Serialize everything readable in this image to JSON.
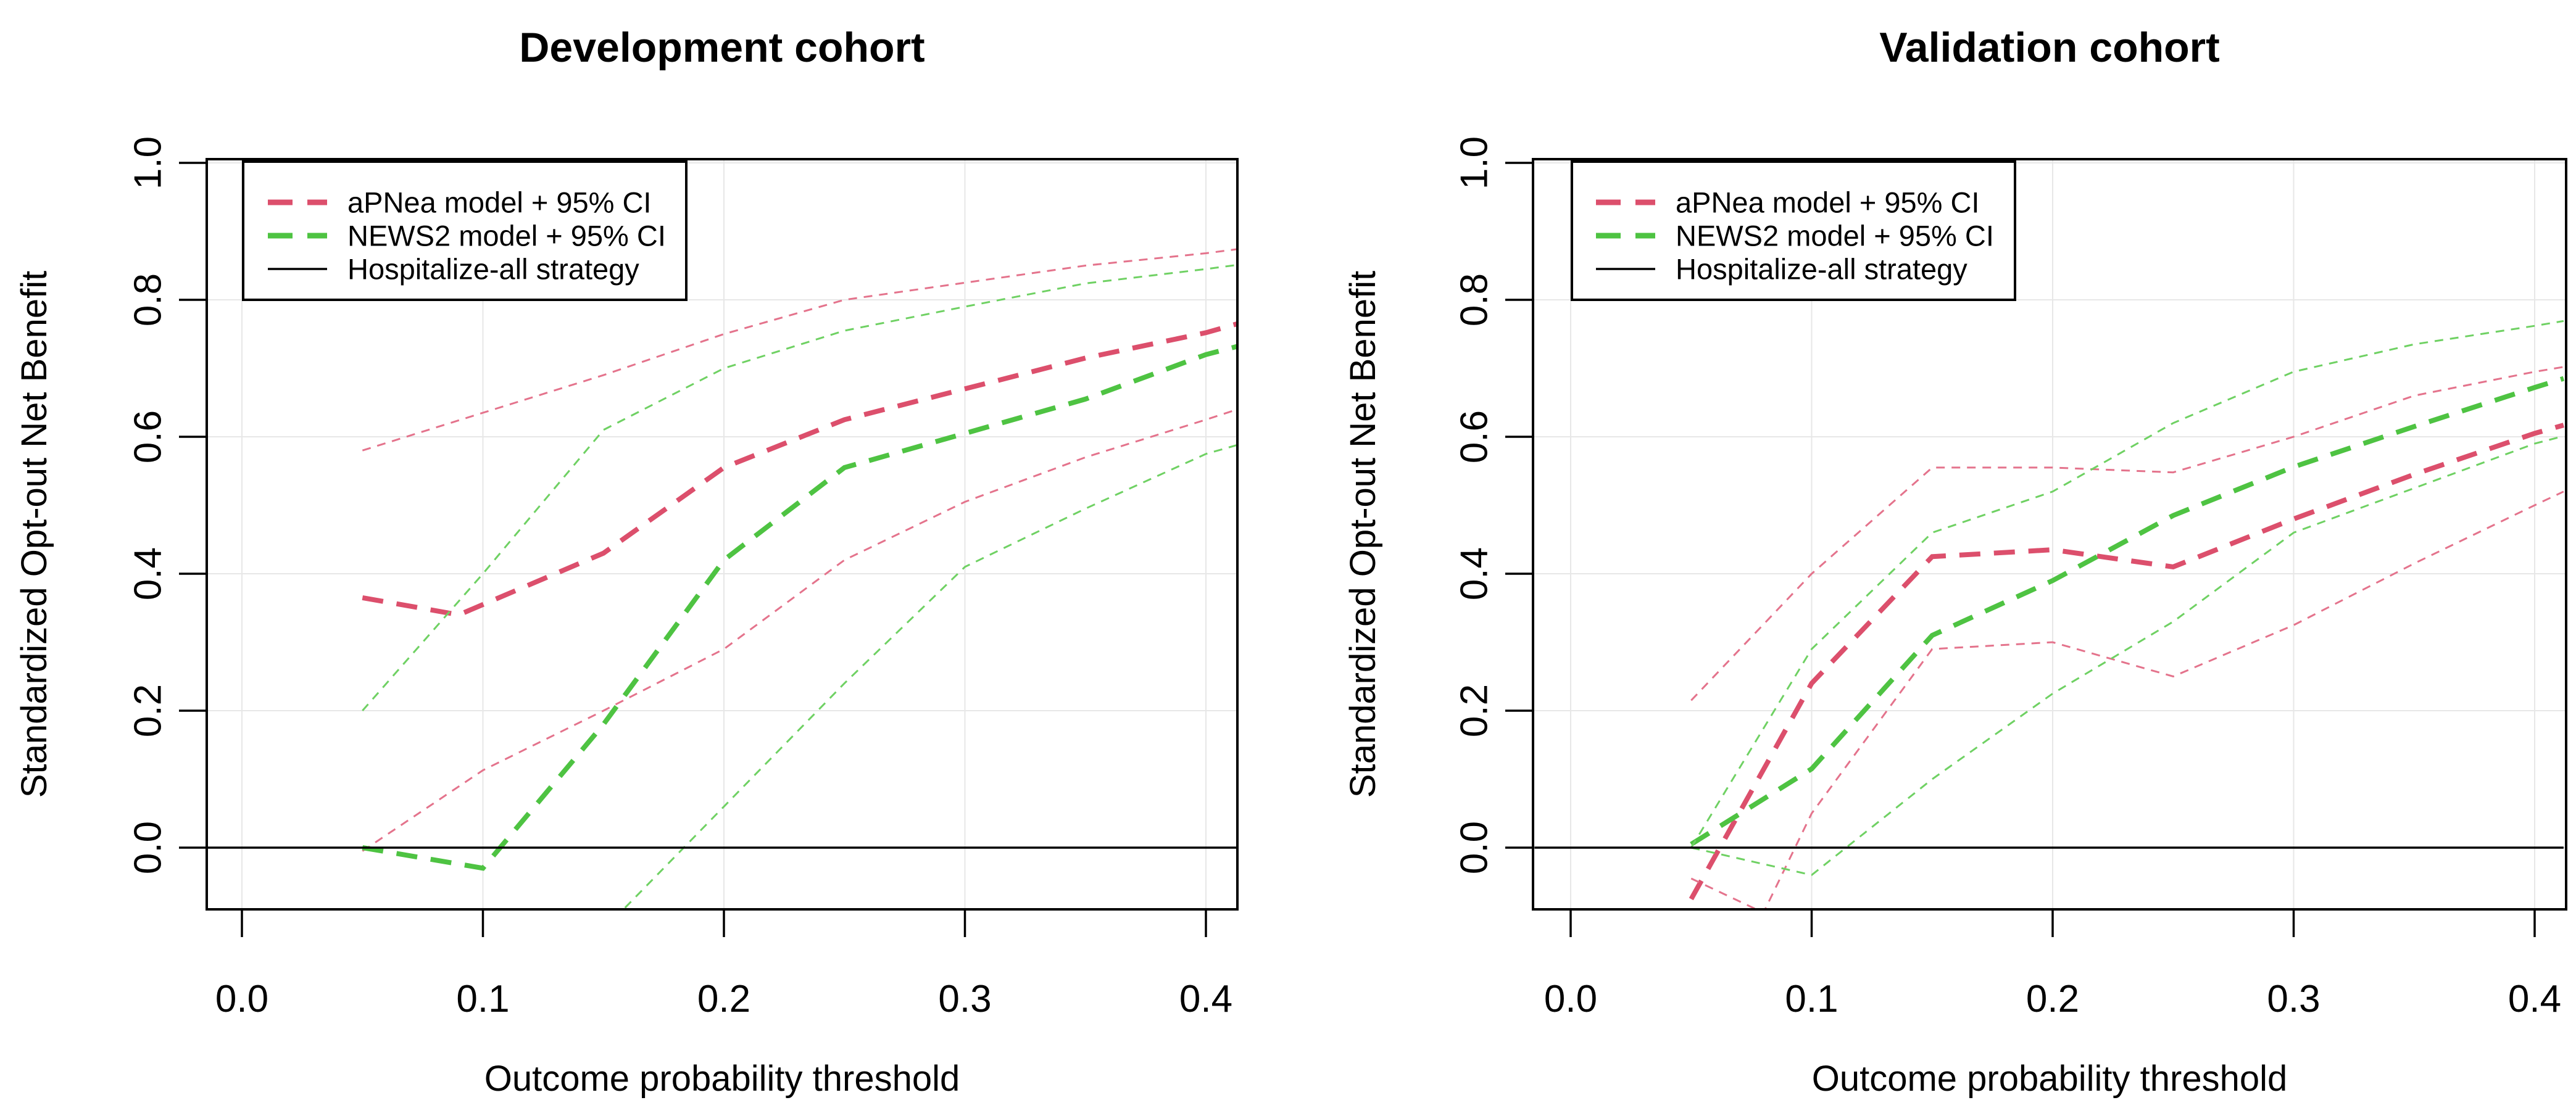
{
  "figure": {
    "background": "#ffffff",
    "palette": {
      "apnea": "#DC4F6C",
      "apnea_ci": "#E4738C",
      "news2": "#4EC342",
      "news2_ci": "#6FD163",
      "reference": "#000000",
      "grid": "#E7E7E7",
      "axis": "#000000"
    }
  },
  "chart_data": [
    {
      "id": "development",
      "type": "line",
      "title": "Development cohort",
      "xlabel": "Outcome probability threshold",
      "ylabel": "Standardized Opt-out Net Benefit",
      "xlim": [
        -0.015,
        0.413
      ],
      "ylim": [
        -0.09,
        1.005
      ],
      "grid": true,
      "legend_position": "top-left",
      "xticks": [
        0.0,
        0.1,
        0.2,
        0.3,
        0.4
      ],
      "xtick_labels": [
        "0.0",
        "0.1",
        "0.2",
        "0.3",
        "0.4"
      ],
      "yticks": [
        0.0,
        0.2,
        0.4,
        0.6,
        0.8,
        1.0
      ],
      "ytick_labels": [
        "0.0",
        "0.2",
        "0.4",
        "0.6",
        "0.8",
        "1.0"
      ],
      "legend": [
        {
          "label": "aPNea model + 95% CI",
          "style": "dashed",
          "color_key": "apnea"
        },
        {
          "label": "NEWS2 model + 95% CI",
          "style": "dashed",
          "color_key": "news2"
        },
        {
          "label": "Hospitalize-all strategy",
          "style": "solid",
          "color_key": "reference"
        }
      ],
      "series": [
        {
          "name": "aPNea model",
          "role": "main",
          "color_key": "apnea",
          "x": [
            0.05,
            0.09,
            0.15,
            0.2,
            0.25,
            0.3,
            0.35,
            0.4,
            0.413
          ],
          "y": [
            0.365,
            0.34,
            0.43,
            0.555,
            0.625,
            0.67,
            0.715,
            0.752,
            0.765
          ]
        },
        {
          "name": "aPNea upper 95% CI",
          "role": "ci",
          "color_key": "apnea_ci",
          "x": [
            0.05,
            0.1,
            0.15,
            0.2,
            0.25,
            0.3,
            0.35,
            0.4,
            0.413
          ],
          "y": [
            0.58,
            0.635,
            0.69,
            0.75,
            0.8,
            0.825,
            0.85,
            0.868,
            0.874
          ]
        },
        {
          "name": "aPNea lower 95% CI",
          "role": "ci",
          "color_key": "apnea_ci",
          "x": [
            0.05,
            0.1,
            0.15,
            0.2,
            0.25,
            0.3,
            0.35,
            0.4,
            0.413
          ],
          "y": [
            -0.005,
            0.113,
            0.2,
            0.29,
            0.42,
            0.505,
            0.57,
            0.625,
            0.64
          ]
        },
        {
          "name": "NEWS2 model",
          "role": "main",
          "color_key": "news2",
          "x": [
            0.05,
            0.1,
            0.15,
            0.2,
            0.25,
            0.3,
            0.35,
            0.4,
            0.413
          ],
          "y": [
            0.0,
            -0.03,
            0.18,
            0.42,
            0.555,
            0.605,
            0.655,
            0.72,
            0.732
          ]
        },
        {
          "name": "NEWS2 upper 95% CI",
          "role": "ci",
          "color_key": "news2_ci",
          "x": [
            0.05,
            0.1,
            0.15,
            0.2,
            0.25,
            0.3,
            0.35,
            0.4,
            0.413
          ],
          "y": [
            0.2,
            0.4,
            0.61,
            0.7,
            0.755,
            0.79,
            0.824,
            0.845,
            0.851
          ]
        },
        {
          "name": "NEWS2 lower 95% CI",
          "role": "ci",
          "color_key": "news2_ci",
          "x": [
            0.15,
            0.2,
            0.25,
            0.3,
            0.35,
            0.4,
            0.413
          ],
          "y": [
            -0.12,
            0.06,
            0.24,
            0.41,
            0.495,
            0.575,
            0.588
          ]
        },
        {
          "name": "Hospitalize-all strategy",
          "role": "reference",
          "color_key": "reference",
          "x": [
            -0.015,
            0.413
          ],
          "y": [
            0.0,
            0.0
          ]
        }
      ]
    },
    {
      "id": "validation",
      "type": "line",
      "title": "Validation cohort",
      "xlabel": "Outcome probability threshold",
      "ylabel": "Standardized Opt-out Net Benefit",
      "xlim": [
        -0.015,
        0.412
      ],
      "ylim": [
        -0.09,
        1.005
      ],
      "grid": true,
      "legend_position": "top-left",
      "xticks": [
        0.0,
        0.1,
        0.2,
        0.3,
        0.4
      ],
      "xtick_labels": [
        "0.0",
        "0.1",
        "0.2",
        "0.3",
        "0.4"
      ],
      "yticks": [
        0.0,
        0.2,
        0.4,
        0.6,
        0.8,
        1.0
      ],
      "ytick_labels": [
        "0.0",
        "0.2",
        "0.4",
        "0.6",
        "0.8",
        "1.0"
      ],
      "legend": [
        {
          "label": "aPNea model + 95% CI",
          "style": "dashed",
          "color_key": "apnea"
        },
        {
          "label": "NEWS2 model + 95% CI",
          "style": "dashed",
          "color_key": "news2"
        },
        {
          "label": "Hospitalize-all strategy",
          "style": "solid",
          "color_key": "reference"
        }
      ],
      "series": [
        {
          "name": "aPNea model",
          "role": "main",
          "color_key": "apnea",
          "x": [
            0.05,
            0.1,
            0.15,
            0.2,
            0.25,
            0.3,
            0.35,
            0.4,
            0.412
          ],
          "y": [
            -0.075,
            0.24,
            0.425,
            0.435,
            0.41,
            0.48,
            0.545,
            0.605,
            0.617
          ]
        },
        {
          "name": "aPNea upper 95% CI",
          "role": "ci",
          "color_key": "apnea_ci",
          "x": [
            0.05,
            0.1,
            0.15,
            0.2,
            0.25,
            0.3,
            0.35,
            0.4,
            0.412
          ],
          "y": [
            0.215,
            0.4,
            0.555,
            0.555,
            0.548,
            0.6,
            0.66,
            0.695,
            0.702
          ]
        },
        {
          "name": "aPNea lower 95% CI",
          "role": "ci",
          "color_key": "apnea_ci",
          "x": [
            0.05,
            0.08,
            0.1,
            0.15,
            0.2,
            0.25,
            0.3,
            0.35,
            0.4,
            0.412
          ],
          "y": [
            -0.045,
            -0.095,
            0.05,
            0.29,
            0.3,
            0.25,
            0.325,
            0.415,
            0.5,
            0.52
          ]
        },
        {
          "name": "NEWS2 model",
          "role": "main",
          "color_key": "news2",
          "x": [
            0.05,
            0.1,
            0.15,
            0.2,
            0.25,
            0.3,
            0.35,
            0.4,
            0.412
          ],
          "y": [
            0.005,
            0.115,
            0.31,
            0.39,
            0.485,
            0.556,
            0.615,
            0.672,
            0.685
          ]
        },
        {
          "name": "NEWS2 upper 95% CI",
          "role": "ci",
          "color_key": "news2_ci",
          "x": [
            0.05,
            0.1,
            0.15,
            0.2,
            0.25,
            0.3,
            0.35,
            0.4,
            0.412
          ],
          "y": [
            0.0,
            0.29,
            0.46,
            0.52,
            0.62,
            0.695,
            0.735,
            0.762,
            0.769
          ]
        },
        {
          "name": "NEWS2 lower 95% CI",
          "role": "ci",
          "color_key": "news2_ci",
          "x": [
            0.05,
            0.1,
            0.15,
            0.2,
            0.25,
            0.3,
            0.35,
            0.4,
            0.412
          ],
          "y": [
            0.0,
            -0.04,
            0.1,
            0.225,
            0.33,
            0.46,
            0.525,
            0.59,
            0.601
          ]
        },
        {
          "name": "Hospitalize-all strategy",
          "role": "reference",
          "color_key": "reference",
          "x": [
            -0.015,
            0.412
          ],
          "y": [
            0.0,
            0.0
          ]
        }
      ]
    }
  ]
}
